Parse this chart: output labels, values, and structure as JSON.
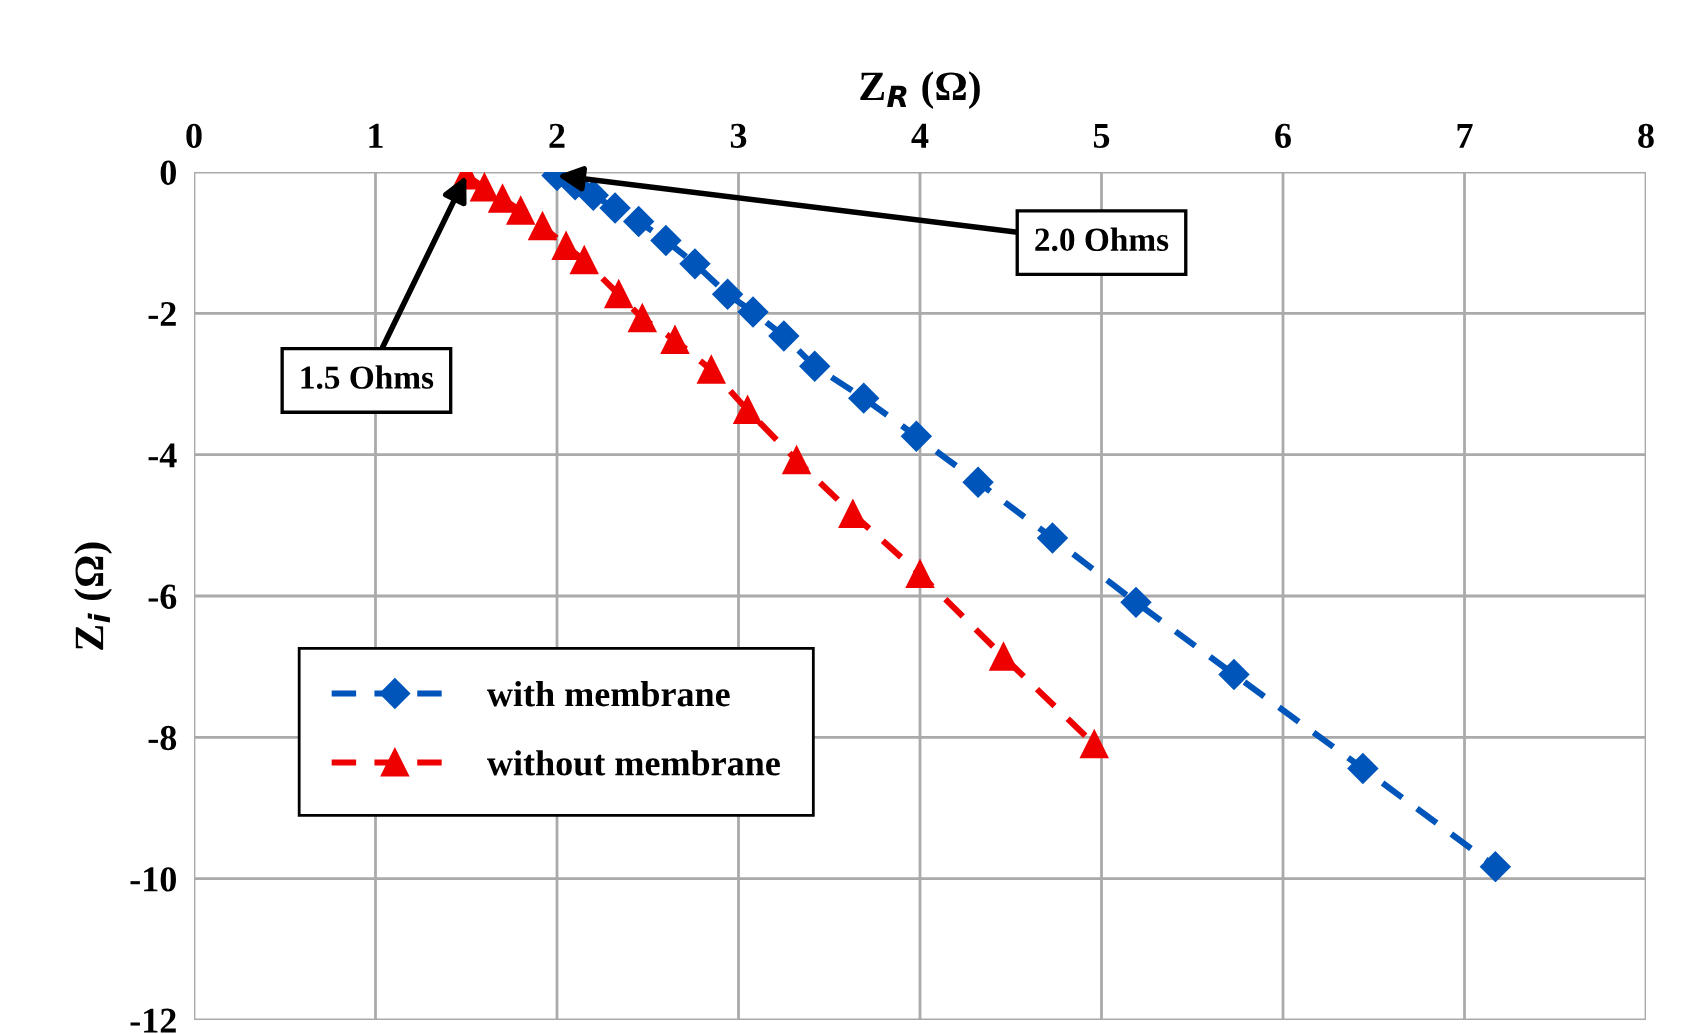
{
  "chart_data": {
    "type": "line",
    "xlabel": "Z$_{R}$ (Ω)",
    "ylabel": "Z$_{i}$ (Ω)",
    "series": [
      {
        "name": "with membrane",
        "color": "#0055bb",
        "marker": "diamond",
        "line_style": "dashed",
        "x": [
          2.0,
          2.1,
          2.2,
          2.32,
          2.45,
          2.6,
          2.76,
          2.94,
          3.08,
          3.25,
          3.42,
          3.69,
          3.98,
          4.32,
          4.73,
          5.19,
          5.73,
          6.44,
          7.17
        ],
        "values": [
          -0.05,
          -0.18,
          -0.33,
          -0.51,
          -0.7,
          -0.97,
          -1.3,
          -1.73,
          -1.98,
          -2.32,
          -2.75,
          -3.2,
          -3.74,
          -4.39,
          -5.18,
          -6.09,
          -7.11,
          -8.44,
          -9.83
        ]
      },
      {
        "name": "without membrane",
        "color": "#ee0000",
        "marker": "triangle",
        "line_style": "dashed",
        "x": [
          1.5,
          1.6,
          1.7,
          1.8,
          1.92,
          2.05,
          2.15,
          2.34,
          2.47,
          2.65,
          2.85,
          3.05,
          3.32,
          3.63,
          4.0,
          4.46,
          4.96
        ],
        "values": [
          -0.05,
          -0.22,
          -0.38,
          -0.55,
          -0.77,
          -1.05,
          -1.25,
          -1.73,
          -2.07,
          -2.38,
          -2.8,
          -3.37,
          -4.08,
          -4.84,
          -5.69,
          -6.86,
          -8.1
        ]
      }
    ],
    "annotations": [
      {
        "text": "2.0 Ohms",
        "x": 2.0,
        "y": -0.05
      },
      {
        "text": "1.5 Ohms",
        "x": 1.5,
        "y": -0.05
      }
    ],
    "xlim": [
      0,
      8
    ],
    "xticks": [
      0,
      1,
      2,
      3,
      4,
      5,
      6,
      7,
      8
    ],
    "ylim": [
      -12,
      0
    ],
    "yticks": [
      -12,
      -10,
      -8,
      -6,
      -4,
      -2,
      0
    ],
    "grid": true,
    "legend": "lower left"
  }
}
